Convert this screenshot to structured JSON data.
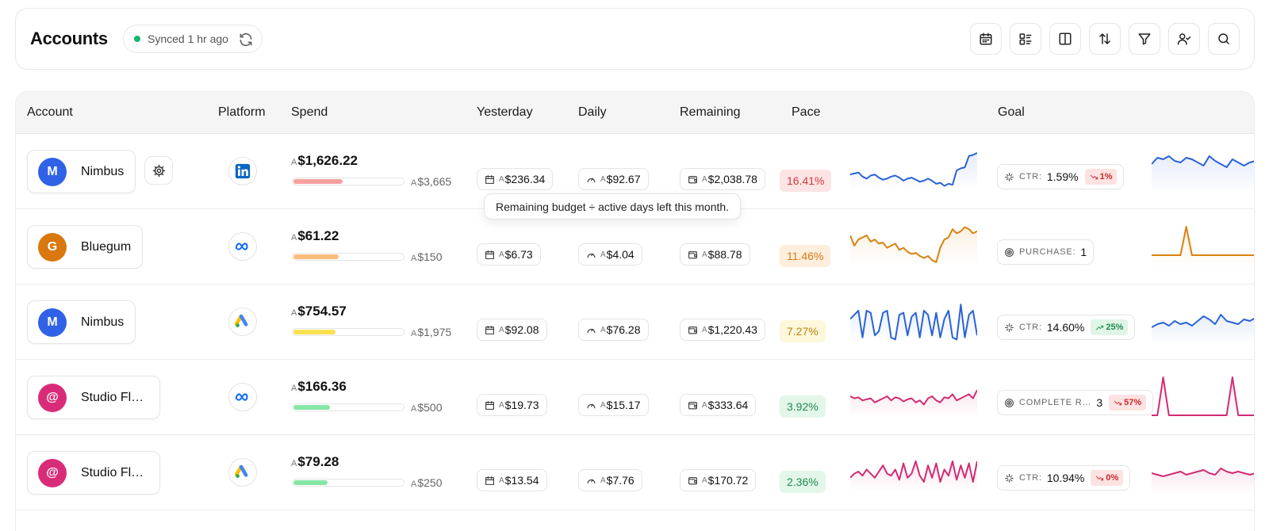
{
  "header": {
    "title": "Accounts",
    "sync_status": "Synced 1 hr ago",
    "sync_dot_color": "#16b36c",
    "tools": [
      "calendar-icon",
      "list-icon",
      "columns-icon",
      "sort-icon",
      "filter-icon",
      "user-check-icon",
      "search-icon"
    ]
  },
  "columns": {
    "account": "Account",
    "platform": "Platform",
    "spend": "Spend",
    "yesterday": "Yesterday",
    "daily": "Daily",
    "remaining": "Remaining",
    "pace": "Pace",
    "trend": "",
    "goal": "Goal"
  },
  "currency_prefix": "A",
  "tooltip": "Remaining budget ÷ active days left this month.",
  "rows": [
    {
      "initial": "M",
      "name": "Nimbus",
      "avatar_color": "#2f62e6",
      "show_gear": true,
      "platform": "linkedin-icon",
      "spend": "$1,626.22",
      "budget": "$3,665",
      "spend_ratio": 0.44,
      "bar_color": "#f7a1a1",
      "yesterday": "$236.34",
      "daily": "$92.67",
      "remaining": "$2,038.78",
      "pace": "16.41%",
      "pace_bg": "#fde4e4",
      "pace_color": "#d03a3a",
      "trend_color": "#2a62d8",
      "trend": [
        24,
        23,
        22,
        26,
        28,
        25,
        24,
        27,
        29,
        28,
        26,
        25,
        27,
        30,
        28,
        27,
        29,
        31,
        30,
        28,
        30,
        33,
        32,
        35,
        33,
        34,
        20,
        18,
        17,
        6,
        5,
        3
      ],
      "goal_metric": "CTR:",
      "goal_icon": "sparkle-icon",
      "goal_value": "1.59%",
      "goal_delta": "1%",
      "goal_dir": "down",
      "goal_trend": [
        18,
        10,
        12,
        8,
        14,
        16,
        10,
        12,
        16,
        20,
        8,
        14,
        18,
        22,
        12,
        16,
        20,
        16,
        14
      ],
      "goal_trend_color": "#2a62d8"
    },
    {
      "initial": "G",
      "name": "Bluegum",
      "avatar_color": "#d9780f",
      "show_gear": false,
      "platform": "meta-icon",
      "spend": "$61.22",
      "budget": "$150",
      "spend_ratio": 0.41,
      "bar_color": "#fdbb7b",
      "yesterday": "$6.73",
      "daily": "$4.04",
      "remaining": "$88.78",
      "pace": "11.46%",
      "pace_bg": "#fdeede",
      "pace_color": "#d9780f",
      "trend_color": "#d9820f",
      "trend": [
        10,
        20,
        14,
        12,
        10,
        16,
        14,
        18,
        17,
        22,
        20,
        18,
        24,
        22,
        26,
        28,
        27,
        30,
        32,
        30,
        34,
        36,
        22,
        14,
        12,
        4,
        8,
        6,
        2,
        4,
        8,
        6
      ],
      "goal_metric": "PURCHASE:",
      "goal_icon": "target-icon",
      "goal_value": "1",
      "goal_delta": "",
      "goal_dir": "",
      "goal_trend": [
        38,
        38,
        38,
        38,
        38,
        38,
        2,
        38,
        38,
        38,
        38,
        38,
        38,
        38,
        38,
        38,
        38,
        38,
        38
      ],
      "goal_trend_color": "#d9820f"
    },
    {
      "initial": "M",
      "name": "Nimbus",
      "avatar_color": "#2f62e6",
      "show_gear": false,
      "platform": "google-ads-icon",
      "spend": "$754.57",
      "budget": "$1,975",
      "spend_ratio": 0.38,
      "bar_color": "#fbe04f",
      "yesterday": "$92.08",
      "daily": "$76.28",
      "remaining": "$1,220.43",
      "pace": "7.27%",
      "pace_bg": "#fdf7dc",
      "pace_color": "#b8860b",
      "trend_color": "#2a62d8",
      "trend": [
        18,
        14,
        10,
        36,
        10,
        12,
        34,
        30,
        12,
        10,
        36,
        38,
        14,
        12,
        34,
        16,
        12,
        36,
        10,
        14,
        34,
        12,
        36,
        18,
        10,
        36,
        38,
        4,
        36,
        14,
        10,
        34
      ],
      "goal_metric": "CTR:",
      "goal_icon": "sparkle-icon",
      "goal_value": "14.60%",
      "goal_delta": "25%",
      "goal_dir": "up",
      "goal_trend": [
        34,
        30,
        28,
        32,
        26,
        30,
        28,
        32,
        26,
        20,
        24,
        30,
        18,
        26,
        28,
        30,
        24,
        26,
        22
      ],
      "goal_trend_color": "#2a62d8"
    },
    {
      "initial": "@",
      "name": "Studio Fl…",
      "avatar_color": "#d92c78",
      "show_gear": false,
      "platform": "meta-icon",
      "spend": "$166.36",
      "budget": "$500",
      "spend_ratio": 0.33,
      "bar_color": "#86e6a6",
      "yesterday": "$19.73",
      "daily": "$15.17",
      "remaining": "$333.64",
      "pace": "3.92%",
      "pace_bg": "#e3f6ea",
      "pace_color": "#1f8a4c",
      "trend_color": "#d12c74",
      "trend": [
        20,
        22,
        21,
        24,
        23,
        22,
        26,
        24,
        22,
        20,
        24,
        21,
        22,
        25,
        23,
        22,
        26,
        24,
        28,
        22,
        20,
        24,
        26,
        21,
        22,
        18,
        24,
        22,
        20,
        18,
        22,
        14
      ],
      "goal_metric": "COMPLETE R…",
      "goal_icon": "target-icon",
      "goal_value": "3",
      "goal_delta": "57%",
      "goal_dir": "down",
      "goal_trend": [
        50,
        50,
        2,
        50,
        50,
        50,
        50,
        50,
        50,
        50,
        50,
        50,
        50,
        50,
        2,
        50,
        50,
        50,
        50
      ],
      "goal_trend_color": "#d12c74"
    },
    {
      "initial": "@",
      "name": "Studio Fl…",
      "avatar_color": "#d92c78",
      "show_gear": false,
      "platform": "google-ads-icon",
      "spend": "$79.28",
      "budget": "$250",
      "spend_ratio": 0.31,
      "bar_color": "#86e6a6",
      "yesterday": "$13.54",
      "daily": "$7.76",
      "remaining": "$170.72",
      "pace": "2.36%",
      "pace_bg": "#e3f6ea",
      "pace_color": "#1f8a4c",
      "trend_color": "#d12c74",
      "trend": [
        26,
        22,
        20,
        24,
        18,
        22,
        26,
        20,
        14,
        22,
        24,
        18,
        28,
        12,
        26,
        22,
        10,
        24,
        30,
        14,
        26,
        12,
        30,
        18,
        24,
        10,
        28,
        14,
        26,
        12,
        30,
        10
      ],
      "goal_metric": "CTR:",
      "goal_icon": "sparkle-icon",
      "goal_value": "10.94%",
      "goal_delta": "0%",
      "goal_dir": "down",
      "goal_trend": [
        28,
        30,
        32,
        30,
        28,
        26,
        30,
        28,
        26,
        24,
        28,
        30,
        22,
        26,
        28,
        26,
        28,
        30,
        28
      ],
      "goal_trend_color": "#d12c74"
    }
  ]
}
